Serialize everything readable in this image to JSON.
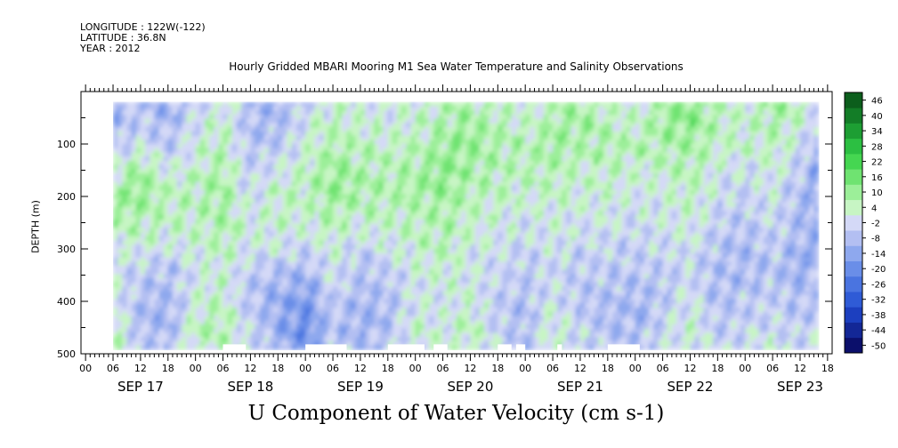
{
  "header": {
    "longitude": "LONGITUDE : 122W(-122)",
    "latitude": "LATITUDE : 36.8N",
    "year": "YEAR : 2012"
  },
  "chart_data": {
    "type": "heatmap",
    "title": "Hourly Gridded MBARI Mooring M1 Sea Water Temperature and Salinity Observations",
    "xlabel": "U Component of Water Velocity (cm s-1)",
    "ylabel": "DEPTH (m)",
    "ylim": [
      500,
      0
    ],
    "yticks": [
      100,
      200,
      300,
      400,
      500
    ],
    "xlim_hours_from_sep17_00": [
      -1,
      163
    ],
    "hour_tick_labels": [
      "00",
      "06",
      "12",
      "18"
    ],
    "day_labels": [
      "SEP 17",
      "SEP 18",
      "SEP 19",
      "SEP 20",
      "SEP 21",
      "SEP 22",
      "SEP 23"
    ],
    "data_depth_range": [
      20,
      490
    ],
    "data_hour_range": [
      6,
      160
    ],
    "colorbar": {
      "levels": [
        -50,
        -44,
        -38,
        -32,
        -26,
        -20,
        -14,
        -8,
        -2,
        4,
        10,
        16,
        22,
        28,
        34,
        40,
        46
      ],
      "labels": [
        "46",
        "40",
        "34",
        "28",
        "22",
        "16",
        "10",
        "4",
        "-2",
        "-8",
        "-14",
        "-20",
        "-26",
        "-32",
        "-38",
        "-44",
        "-50"
      ],
      "colors": [
        "#0b0f6b",
        "#132796",
        "#1c3fbf",
        "#2f5bd6",
        "#4a74e0",
        "#6a8ee8",
        "#8ea8ee",
        "#b3bff2",
        "#d4d9f7",
        "#c7f5c4",
        "#9cef99",
        "#6fe371",
        "#45d651",
        "#2cbf42",
        "#1d9e33",
        "#137d27",
        "#0c5e1c"
      ]
    },
    "values_cm_s": {
      "depths_m": [
        20,
        60,
        100,
        140,
        180,
        220,
        260,
        300,
        340,
        380,
        420,
        460,
        490
      ],
      "hours": [
        6,
        12,
        18,
        24,
        30,
        36,
        42,
        48,
        54,
        60,
        66,
        72,
        78,
        84,
        90,
        96,
        102,
        108,
        114,
        120,
        126,
        132,
        138,
        144,
        150,
        156,
        160
      ],
      "rows": [
        [
          -6,
          -4,
          -8,
          -2,
          4,
          -4,
          -8,
          -2,
          6,
          4,
          2,
          4,
          8,
          10,
          6,
          4,
          8,
          10,
          6,
          4,
          10,
          14,
          8,
          4,
          12,
          8,
          2
        ],
        [
          -8,
          -2,
          -6,
          2,
          6,
          -6,
          -6,
          2,
          8,
          6,
          4,
          6,
          10,
          12,
          8,
          6,
          10,
          12,
          8,
          6,
          12,
          16,
          8,
          6,
          10,
          6,
          -2
        ],
        [
          -4,
          2,
          -4,
          4,
          8,
          -4,
          -4,
          4,
          10,
          8,
          6,
          8,
          12,
          14,
          10,
          8,
          12,
          10,
          10,
          8,
          10,
          12,
          6,
          6,
          8,
          2,
          -6
        ],
        [
          4,
          10,
          2,
          6,
          10,
          -2,
          2,
          6,
          12,
          10,
          8,
          10,
          14,
          12,
          10,
          8,
          10,
          8,
          8,
          6,
          8,
          10,
          4,
          2,
          6,
          -2,
          -8
        ],
        [
          10,
          14,
          6,
          8,
          12,
          0,
          6,
          8,
          14,
          10,
          10,
          12,
          14,
          10,
          8,
          6,
          8,
          6,
          6,
          4,
          6,
          8,
          2,
          0,
          4,
          -4,
          -10
        ],
        [
          12,
          12,
          8,
          8,
          12,
          2,
          8,
          6,
          12,
          8,
          8,
          10,
          12,
          8,
          6,
          4,
          6,
          4,
          4,
          2,
          4,
          6,
          0,
          -2,
          2,
          -6,
          -10
        ],
        [
          8,
          8,
          6,
          6,
          10,
          4,
          6,
          4,
          8,
          4,
          6,
          8,
          10,
          6,
          4,
          2,
          4,
          2,
          2,
          0,
          2,
          4,
          -2,
          -4,
          0,
          -6,
          -8
        ],
        [
          4,
          4,
          2,
          4,
          8,
          2,
          2,
          0,
          4,
          0,
          2,
          6,
          8,
          4,
          2,
          0,
          2,
          0,
          0,
          -2,
          0,
          2,
          -4,
          -6,
          -2,
          -8,
          -8
        ],
        [
          2,
          -2,
          -4,
          2,
          6,
          -2,
          -4,
          -6,
          2,
          -4,
          -2,
          4,
          6,
          2,
          0,
          -2,
          0,
          -2,
          -2,
          -4,
          -2,
          0,
          -6,
          -6,
          -4,
          -8,
          -6
        ],
        [
          4,
          -4,
          -6,
          4,
          6,
          -4,
          -8,
          -12,
          0,
          -6,
          -4,
          2,
          4,
          4,
          -2,
          -4,
          2,
          -4,
          -4,
          -6,
          -4,
          2,
          -6,
          -4,
          -2,
          -6,
          -4
        ],
        [
          6,
          -6,
          -8,
          6,
          8,
          -2,
          -10,
          -16,
          -2,
          -8,
          -6,
          4,
          2,
          6,
          -2,
          -6,
          4,
          -2,
          -6,
          -8,
          -2,
          4,
          -4,
          -2,
          0,
          -4,
          -2
        ],
        [
          8,
          -4,
          -6,
          8,
          10,
          0,
          -8,
          -18,
          -4,
          -8,
          -4,
          6,
          4,
          8,
          0,
          -6,
          6,
          0,
          -4,
          -6,
          0,
          6,
          -2,
          0,
          2,
          -2,
          0
        ],
        [
          6,
          -2,
          -4,
          6,
          8,
          2,
          -6,
          -14,
          -2,
          -6,
          -2,
          4,
          2,
          6,
          0,
          -4,
          4,
          0,
          -2,
          -4,
          0,
          4,
          0,
          2,
          2,
          0,
          2
        ]
      ]
    },
    "missing_segments_hours_near_bottom": [
      [
        0,
        6
      ],
      [
        30,
        35
      ],
      [
        48,
        57
      ],
      [
        66,
        74
      ],
      [
        76,
        79
      ],
      [
        90,
        93
      ],
      [
        94,
        96
      ],
      [
        103,
        104
      ],
      [
        114,
        121
      ]
    ]
  }
}
